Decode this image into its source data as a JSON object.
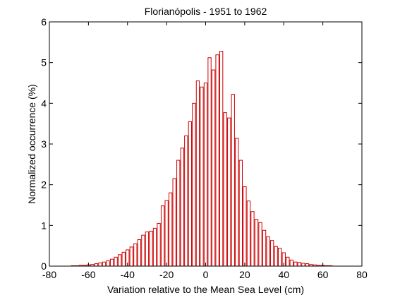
{
  "chart_data": {
    "type": "bar",
    "title": "Florianópolis - 1951 to 1962",
    "xlabel": "Variation relative to the Mean Sea Level (cm)",
    "ylabel": "Normalized occurrence (%)",
    "xlim": [
      -80,
      80
    ],
    "ylim": [
      0,
      6
    ],
    "xticks": [
      -80,
      -60,
      -40,
      -20,
      0,
      20,
      40,
      60,
      80
    ],
    "yticks": [
      0,
      1,
      2,
      3,
      4,
      5,
      6
    ],
    "grid": false,
    "bar_edge_color": "#cc0000",
    "bar_fill_color": "#ffffff",
    "bin_width": 2,
    "x": [
      -68,
      -66,
      -64,
      -62,
      -60,
      -58,
      -56,
      -54,
      -52,
      -50,
      -48,
      -46,
      -44,
      -42,
      -40,
      -38,
      -36,
      -34,
      -32,
      -30,
      -28,
      -26,
      -24,
      -22,
      -20,
      -18,
      -16,
      -14,
      -12,
      -10,
      -8,
      -6,
      -4,
      -2,
      0,
      2,
      4,
      6,
      8,
      10,
      12,
      14,
      16,
      18,
      20,
      22,
      24,
      26,
      28,
      30,
      32,
      34,
      36,
      38,
      40,
      42,
      44,
      46,
      48,
      50,
      52,
      54,
      56,
      58,
      60,
      62,
      64
    ],
    "values": [
      0.01,
      0.01,
      0.02,
      0.02,
      0.03,
      0.04,
      0.06,
      0.08,
      0.1,
      0.13,
      0.17,
      0.22,
      0.28,
      0.34,
      0.4,
      0.47,
      0.55,
      0.65,
      0.76,
      0.84,
      0.86,
      0.93,
      1.05,
      1.48,
      1.61,
      1.8,
      2.15,
      2.6,
      2.9,
      3.2,
      3.55,
      4.0,
      4.55,
      4.4,
      4.5,
      5.12,
      4.82,
      5.19,
      5.28,
      3.77,
      3.64,
      4.22,
      3.14,
      2.6,
      1.95,
      1.6,
      1.34,
      1.15,
      1.07,
      0.88,
      0.72,
      0.63,
      0.48,
      0.44,
      0.33,
      0.22,
      0.15,
      0.1,
      0.09,
      0.07,
      0.06,
      0.04,
      0.03,
      0.02,
      0.02,
      0.01,
      0.01
    ]
  }
}
